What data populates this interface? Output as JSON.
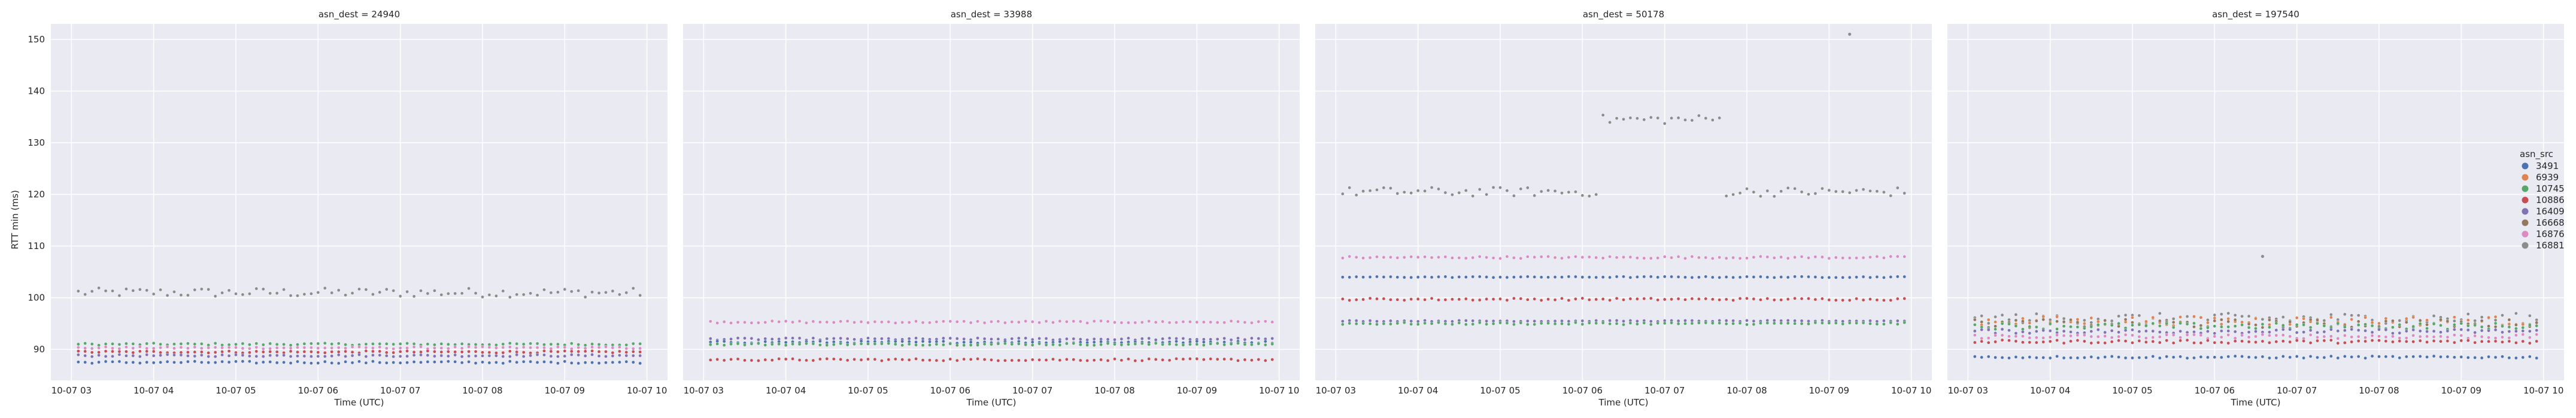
{
  "figure": {
    "ylabel": "RTT min (ms)",
    "legend_title": "asn_src",
    "legend_placement": "right",
    "background": "#eaeaf2",
    "grid_color": "#ffffff"
  },
  "chart_data": {
    "type": "scatter",
    "xlabel": "Time (UTC)",
    "ylabel": "RTT min (ms)",
    "ylim": [
      84,
      153
    ],
    "yticks": [
      90,
      100,
      110,
      120,
      130,
      140,
      150
    ],
    "xlim": [
      "10-07 02:45",
      "10-07 10:15"
    ],
    "xticks": [
      "10-07 03",
      "10-07 04",
      "10-07 05",
      "10-07 06",
      "10-07 07",
      "10-07 08",
      "10-07 09",
      "10-07 10"
    ],
    "grid": true,
    "legend": [
      {
        "name": "3491",
        "color": "#4c72b0"
      },
      {
        "name": "6939",
        "color": "#dd8452"
      },
      {
        "name": "10745",
        "color": "#55a868"
      },
      {
        "name": "10886",
        "color": "#c44e52"
      },
      {
        "name": "16409",
        "color": "#8172b3"
      },
      {
        "name": "16668",
        "color": "#937860"
      },
      {
        "name": "16876",
        "color": "#da8bc3"
      },
      {
        "name": "16881",
        "color": "#8c8c8c"
      }
    ],
    "sampling_interval_minutes": 5,
    "panels": [
      {
        "title": "asn_dest = 24940",
        "series": [
          {
            "name": "16881",
            "level": 101,
            "jitter": 0.9
          },
          {
            "name": "10745",
            "level": 91,
            "jitter": 0.2
          },
          {
            "name": "16876",
            "level": 90.3,
            "jitter": 0.2
          },
          {
            "name": "10886",
            "level": 89.5,
            "jitter": 0.2
          },
          {
            "name": "16409",
            "level": 88.8,
            "jitter": 0.2
          },
          {
            "name": "3491",
            "level": 87.5,
            "jitter": 0.2
          }
        ]
      },
      {
        "title": "asn_dest = 33988",
        "series": [
          {
            "name": "16876",
            "level": 95.3,
            "jitter": 0.2
          },
          {
            "name": "16409",
            "level": 92,
            "jitter": 0.2
          },
          {
            "name": "3491",
            "level": 91.4,
            "jitter": 0.2
          },
          {
            "name": "10745",
            "level": 91,
            "jitter": 0.2
          },
          {
            "name": "10886",
            "level": 88,
            "jitter": 0.2
          }
        ]
      },
      {
        "title": "asn_dest = 50178",
        "series": [
          {
            "name": "16881",
            "level": 120.5,
            "jitter": 0.9
          },
          {
            "name": "16876",
            "level": 107.8,
            "jitter": 0.2
          },
          {
            "name": "3491",
            "level": 104,
            "jitter": 0.1
          },
          {
            "name": "10886",
            "level": 99.7,
            "jitter": 0.2
          },
          {
            "name": "16409",
            "level": 95.5,
            "jitter": 0.1
          },
          {
            "name": "10745",
            "level": 95,
            "jitter": 0.2
          }
        ],
        "events": {
          "16881": {
            "elevated_from": "10-07 06:15",
            "elevated_to": "10-07 07:40",
            "elevated_level": 134.5,
            "spike_time": "10-07 09:15",
            "spike_value": 151
          }
        }
      },
      {
        "title": "asn_dest = 197540",
        "series": [
          {
            "name": "16881",
            "level": 96,
            "jitter": 1.0
          },
          {
            "name": "6939",
            "level": 95.5,
            "jitter": 0.9
          },
          {
            "name": "16668",
            "level": 95,
            "jitter": 0.8
          },
          {
            "name": "10745",
            "level": 94.5,
            "jitter": 0.6
          },
          {
            "name": "16409",
            "level": 93.5,
            "jitter": 0.4
          },
          {
            "name": "16876",
            "level": 92.5,
            "jitter": 0.4
          },
          {
            "name": "10886",
            "level": 91.5,
            "jitter": 0.3
          },
          {
            "name": "3491",
            "level": 88.5,
            "jitter": 0.2
          }
        ],
        "outliers": [
          {
            "series": "16881",
            "time": "10-07 06:35",
            "value": 108
          }
        ]
      }
    ]
  }
}
